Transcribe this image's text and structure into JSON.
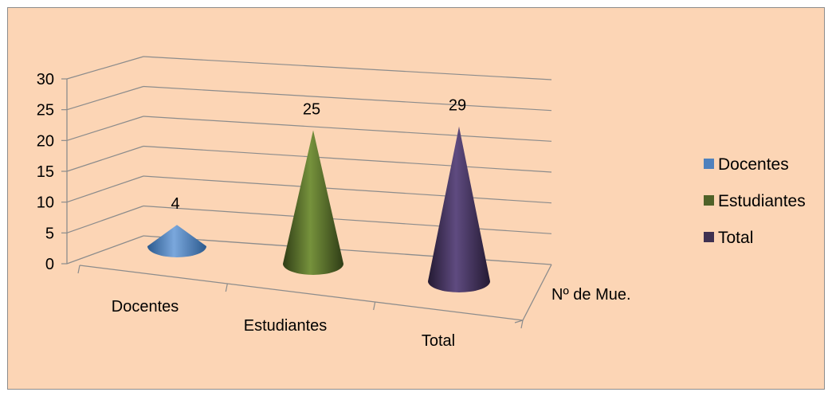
{
  "chart_data": {
    "type": "bar",
    "subtype": "3d-cone",
    "title": "",
    "categories": [
      "Docentes",
      "Estudiantes",
      "Total"
    ],
    "series_name": "Nº de Mue.",
    "values": [
      4,
      25,
      29
    ],
    "data_labels": [
      "4",
      "25",
      "29"
    ],
    "ylim": [
      0,
      30
    ],
    "yticks": [
      0,
      5,
      10,
      15,
      20,
      25,
      30
    ],
    "ytick_labels": [
      "0",
      "5",
      "10",
      "15",
      "20",
      "25",
      "30"
    ],
    "grid": true,
    "legend": {
      "position": "right",
      "entries": [
        {
          "label": "Docentes",
          "color": "#4f81bd"
        },
        {
          "label": "Estudiantes",
          "color": "#4f6228"
        },
        {
          "label": "Total",
          "color": "#3f3151"
        }
      ]
    },
    "colors": [
      "#4f81bd",
      "#4f6228",
      "#3f3151"
    ],
    "background_color": "#fcd5b5"
  }
}
